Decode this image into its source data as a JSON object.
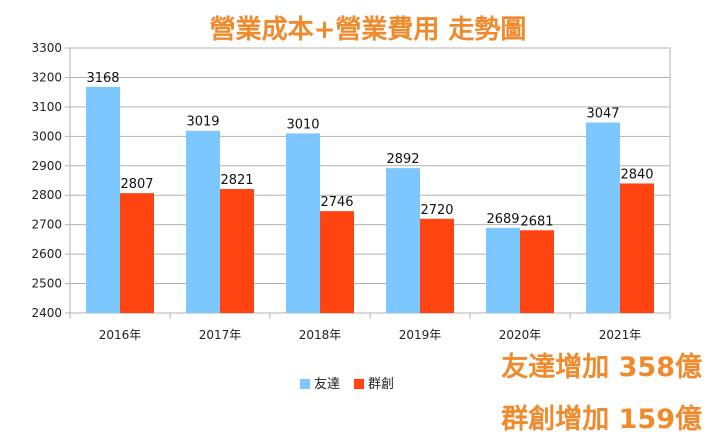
{
  "colors": {
    "title": "#f08a2c",
    "note": "#f08a2c",
    "series": [
      "#7cc7ff",
      "#ff4412"
    ],
    "grid": "#b3b3b3",
    "axis": "#b3b3b3"
  },
  "chart_data": {
    "type": "bar",
    "title": "營業成本+營業費用 走勢圖",
    "categories": [
      "2016年",
      "2017年",
      "2018年",
      "2019年",
      "2020年",
      "2021年"
    ],
    "series": [
      {
        "name": "友達",
        "values": [
          3168,
          3019,
          3010,
          2892,
          2689,
          3047
        ]
      },
      {
        "name": "群創",
        "values": [
          2807,
          2821,
          2746,
          2720,
          2681,
          2840
        ]
      }
    ],
    "xlabel": "",
    "ylabel": "",
    "ylim": [
      2400,
      3300
    ],
    "yticks": [
      2400,
      2500,
      2600,
      2700,
      2800,
      2900,
      3000,
      3100,
      3200,
      3300
    ],
    "grid": true,
    "legend": "bottom-center",
    "data_labels": true
  },
  "notes": {
    "line1": "友達增加 358億",
    "line2": "群創增加 159億"
  }
}
